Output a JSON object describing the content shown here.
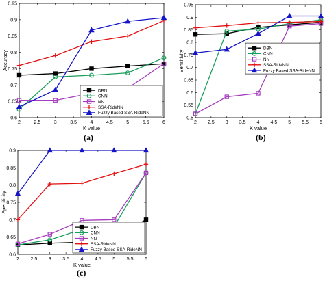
{
  "panels": [
    {
      "caption": "(a)"
    },
    {
      "caption": "(b)"
    },
    {
      "caption": "(c)"
    }
  ],
  "chart_data": [
    {
      "type": "line",
      "xlabel": "K value",
      "ylabel": "Accuracy",
      "xlim": [
        2,
        6
      ],
      "ylim": [
        0.6,
        0.95
      ],
      "xticks": [
        "2",
        "2.5",
        "3",
        "3.5",
        "4",
        "4.5",
        "5",
        "5.5",
        "6"
      ],
      "yticks": [
        "0.6",
        "0.65",
        "0.7",
        "0.75",
        "0.8",
        "0.85",
        "0.9",
        "0.95"
      ],
      "grid": false,
      "legend_position": "bottom-right",
      "x": [
        2,
        3,
        4,
        5,
        6
      ],
      "series": [
        {
          "name": "DBN",
          "color": "#000000",
          "marker": "square",
          "values": [
            0.73,
            0.735,
            0.75,
            0.758,
            0.765
          ]
        },
        {
          "name": "CNN",
          "color": "#1a9e5c",
          "marker": "circle",
          "values": [
            0.625,
            0.725,
            0.73,
            0.737,
            0.783
          ]
        },
        {
          "name": "NN",
          "color": "#a63dbf",
          "marker": "square",
          "values": [
            0.653,
            0.653,
            0.675,
            0.69,
            0.765
          ]
        },
        {
          "name": "SSA-RideNN",
          "color": "#e01010",
          "marker": "plus",
          "values": [
            0.76,
            0.79,
            0.833,
            0.85,
            0.897
          ]
        },
        {
          "name": "Fuzzy Based SSA-RideNN",
          "color": "#1515c8",
          "marker": "triangle",
          "values": [
            0.633,
            0.685,
            0.868,
            0.895,
            0.906
          ]
        }
      ]
    },
    {
      "type": "line",
      "xlabel": "K value",
      "ylabel": "Sensitivity",
      "xlim": [
        2,
        6
      ],
      "ylim": [
        0.5,
        0.95
      ],
      "xticks": [
        "2",
        "2.5",
        "3",
        "3.5",
        "4",
        "4.5",
        "5",
        "5.5",
        "6"
      ],
      "yticks": [
        "0.5",
        "0.55",
        "0.6",
        "0.65",
        "0.7",
        "0.75",
        "0.8",
        "0.85",
        "0.9",
        "0.95"
      ],
      "grid": false,
      "legend_position": "center-right",
      "x": [
        2,
        3,
        4,
        5,
        6
      ],
      "series": [
        {
          "name": "DBN",
          "color": "#000000",
          "marker": "square",
          "values": [
            0.832,
            0.835,
            0.86,
            0.87,
            0.88
          ]
        },
        {
          "name": "CNN",
          "color": "#1a9e5c",
          "marker": "circle",
          "values": [
            0.515,
            0.845,
            0.853,
            0.875,
            0.89
          ]
        },
        {
          "name": "NN",
          "color": "#a63dbf",
          "marker": "square",
          "values": [
            0.515,
            0.583,
            0.597,
            0.865,
            0.875
          ]
        },
        {
          "name": "SSA-RideNN",
          "color": "#e01010",
          "marker": "plus",
          "values": [
            0.858,
            0.867,
            0.878,
            0.88,
            0.883
          ]
        },
        {
          "name": "Fuzzy Based SSA-RideNN",
          "color": "#1515c8",
          "marker": "triangle",
          "values": [
            0.758,
            0.772,
            0.835,
            0.905,
            0.905
          ]
        }
      ]
    },
    {
      "type": "line",
      "xlabel": "K value",
      "ylabel": "Specificity",
      "xlim": [
        2,
        6
      ],
      "ylim": [
        0.6,
        0.9
      ],
      "xticks": [
        "2",
        "2.5",
        "3",
        "3.5",
        "4",
        "4.5",
        "5",
        "5.5",
        "6"
      ],
      "yticks": [
        "0.6",
        "0.65",
        "0.7",
        "0.75",
        "0.8",
        "0.85",
        "0.9"
      ],
      "grid": false,
      "legend_position": "bottom-right",
      "x": [
        2,
        3,
        4,
        5,
        6
      ],
      "series": [
        {
          "name": "DBN",
          "color": "#000000",
          "marker": "square",
          "values": [
            0.627,
            0.632,
            0.635,
            0.65,
            0.7
          ]
        },
        {
          "name": "CNN",
          "color": "#1a9e5c",
          "marker": "circle",
          "values": [
            0.627,
            0.642,
            0.672,
            0.68,
            0.835
          ]
        },
        {
          "name": "NN",
          "color": "#a63dbf",
          "marker": "square",
          "values": [
            0.63,
            0.658,
            0.698,
            0.7,
            0.835
          ]
        },
        {
          "name": "SSA-RideNN",
          "color": "#e01010",
          "marker": "plus",
          "values": [
            0.7,
            0.803,
            0.805,
            0.833,
            0.86
          ]
        },
        {
          "name": "Fuzzy Based SSA-RideNN",
          "color": "#1515c8",
          "marker": "triangle",
          "values": [
            0.775,
            0.9,
            0.9,
            0.9,
            0.9
          ]
        }
      ]
    }
  ]
}
